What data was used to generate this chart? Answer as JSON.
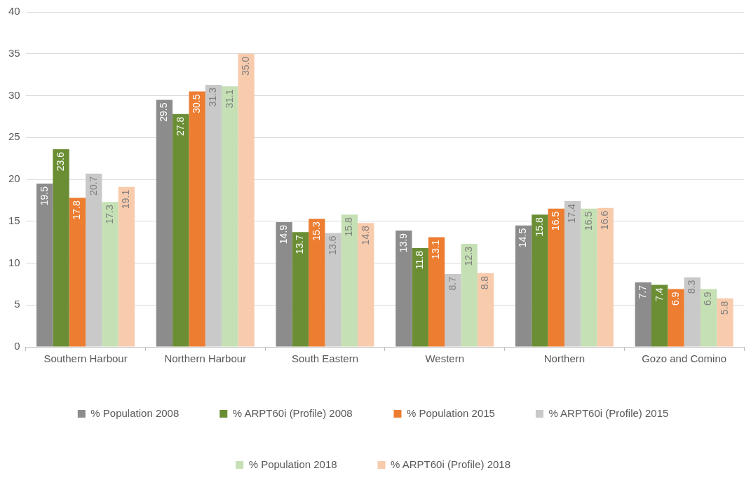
{
  "chart_data": {
    "type": "bar",
    "categories": [
      "Southern Harbour",
      "Northern Harbour",
      "South Eastern",
      "Western",
      "Northern",
      "Gozo and Comino"
    ],
    "series": [
      {
        "name": "% Population 2008",
        "color": "#8c8c8c",
        "values": [
          19.5,
          29.5,
          14.9,
          13.9,
          14.5,
          7.7
        ],
        "value_labels": [
          "19.5",
          "29.5",
          "14.9",
          "13.9",
          "14.5",
          "7.7"
        ]
      },
      {
        "name": "% ARPT60i (Profile) 2008",
        "color": "#6b8e35",
        "values": [
          23.6,
          27.8,
          13.7,
          11.8,
          15.8,
          7.4
        ],
        "value_labels": [
          "23.6",
          "27.8",
          "13.7",
          "11.8",
          "15.8",
          "7.4"
        ]
      },
      {
        "name": "% Population 2015",
        "color": "#ed7d31",
        "values": [
          17.8,
          30.5,
          15.3,
          13.1,
          16.5,
          6.9
        ],
        "value_labels": [
          "17.8",
          "30.5",
          "15.3",
          "13.1",
          "16.5",
          "6.9"
        ]
      },
      {
        "name": "% ARPT60i (Profile) 2015",
        "color": "#c9c9c9",
        "values": [
          20.7,
          31.3,
          13.6,
          8.7,
          17.4,
          8.3
        ],
        "value_labels": [
          "20.7",
          "31.3",
          "13.6",
          "8.7",
          "17.4",
          "8.3"
        ]
      },
      {
        "name": "% Population 2018",
        "color": "#c5e0b4",
        "values": [
          17.3,
          31.1,
          15.8,
          12.3,
          16.5,
          6.9
        ],
        "value_labels": [
          "17.3",
          "31.1",
          "15.8",
          "12.3",
          "16.5",
          "6.9"
        ]
      },
      {
        "name": "% ARPT60i (Profile) 2018",
        "color": "#f8cbad",
        "values": [
          19.1,
          35.0,
          14.8,
          8.8,
          16.6,
          5.8
        ],
        "value_labels": [
          "19.1",
          "35.0",
          "14.8",
          "8.8",
          "16.6",
          "5.8"
        ]
      }
    ],
    "ylim": [
      0,
      40
    ],
    "yticks": [
      0,
      5,
      10,
      15,
      20,
      25,
      30,
      35,
      40
    ],
    "grid": "y",
    "legend": "bottom"
  }
}
